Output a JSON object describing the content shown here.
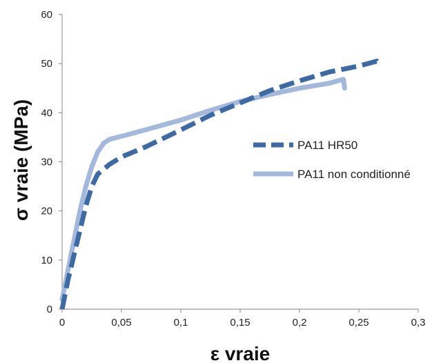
{
  "chart_data": {
    "type": "line",
    "xlabel": "ε vraie",
    "ylabel": "σ  vraie (MPa)",
    "xlim": [
      0,
      0.3
    ],
    "ylim": [
      0,
      60
    ],
    "x_ticks": [
      0,
      0.05,
      0.1,
      0.15,
      0.2,
      0.25,
      0.3
    ],
    "x_tick_labels": [
      "0",
      "0,05",
      "0,1",
      "0,15",
      "0,2",
      "0,25",
      "0,3"
    ],
    "y_ticks": [
      0,
      10,
      20,
      30,
      40,
      50,
      60
    ],
    "y_tick_labels": [
      "0",
      "10",
      "20",
      "30",
      "40",
      "50",
      "60"
    ],
    "grid": false,
    "legend_position": "right",
    "series": [
      {
        "name": "PA11 HR50",
        "color": "#3e6aa3",
        "style": "dashed",
        "points": [
          [
            0,
            0
          ],
          [
            0.005,
            6
          ],
          [
            0.01,
            11
          ],
          [
            0.015,
            16
          ],
          [
            0.02,
            21
          ],
          [
            0.025,
            25
          ],
          [
            0.03,
            27.5
          ],
          [
            0.04,
            29.5
          ],
          [
            0.05,
            31
          ],
          [
            0.07,
            33
          ],
          [
            0.1,
            36.5
          ],
          [
            0.125,
            39.5
          ],
          [
            0.15,
            42
          ],
          [
            0.175,
            44.5
          ],
          [
            0.2,
            46.5
          ],
          [
            0.225,
            48.3
          ],
          [
            0.25,
            49.5
          ],
          [
            0.265,
            50.5
          ],
          [
            0.267,
            49.5
          ]
        ]
      },
      {
        "name": "PA11 non conditionné",
        "color": "#a3b8da",
        "style": "solid",
        "points": [
          [
            0,
            2
          ],
          [
            0.005,
            8
          ],
          [
            0.01,
            14
          ],
          [
            0.015,
            20
          ],
          [
            0.02,
            25
          ],
          [
            0.025,
            29
          ],
          [
            0.03,
            32
          ],
          [
            0.035,
            33.8
          ],
          [
            0.04,
            34.6
          ],
          [
            0.05,
            35.2
          ],
          [
            0.07,
            36.5
          ],
          [
            0.1,
            38.5
          ],
          [
            0.125,
            40.5
          ],
          [
            0.15,
            42.3
          ],
          [
            0.175,
            43.7
          ],
          [
            0.2,
            45
          ],
          [
            0.225,
            46
          ],
          [
            0.237,
            46.8
          ],
          [
            0.238,
            45
          ]
        ]
      }
    ]
  }
}
